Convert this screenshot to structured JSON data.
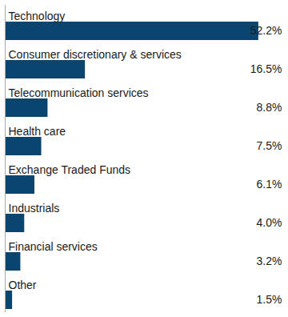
{
  "chart_data": {
    "type": "bar",
    "orientation": "horizontal",
    "categories": [
      "Technology",
      "Consumer discretionary & services",
      "Telecommunication services",
      "Health care",
      "Exchange Traded Funds",
      "Industrials",
      "Financial services",
      "Other"
    ],
    "values": [
      52.2,
      16.5,
      8.8,
      7.5,
      6.1,
      4.0,
      3.2,
      1.5
    ],
    "value_labels": [
      "52.2%",
      "16.5%",
      "8.8%",
      "7.5%",
      "6.1%",
      "4.0%",
      "3.2%",
      "1.5%"
    ],
    "data_labels": true,
    "color": "#0a4570",
    "xlim": [
      0,
      57
    ],
    "tick_labels": false,
    "grid": false
  }
}
